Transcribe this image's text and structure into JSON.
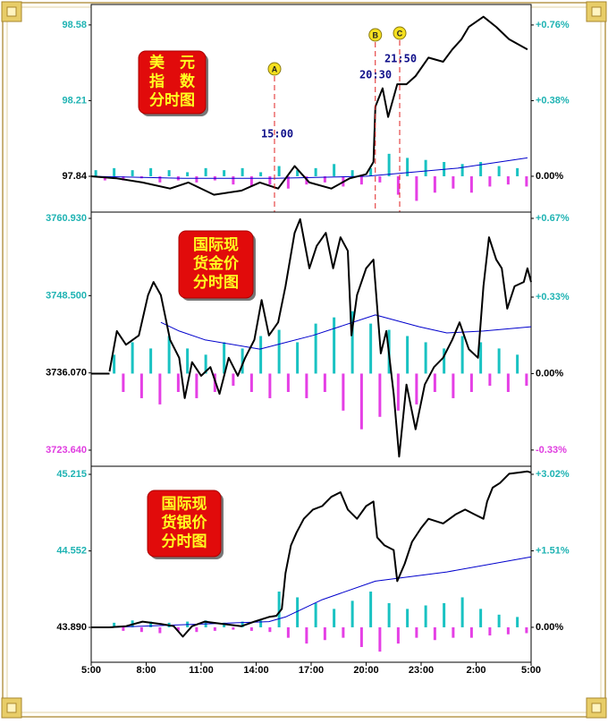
{
  "chart_data": [
    {
      "type": "line",
      "annotation": [
        "美　元",
        "指　数",
        "分时图"
      ],
      "xlim": [
        0,
        24
      ],
      "ylim": [
        97.665,
        98.68
      ],
      "yticks": [
        98.58,
        98.21,
        97.84
      ],
      "y2lim": [
        -0.18,
        0.863
      ],
      "y2ticks": [
        {
          "value": 0.76,
          "label": "+0.76%"
        },
        {
          "value": 0.38,
          "label": "+0.38%"
        },
        {
          "value": 0,
          "label": "0.00%"
        }
      ],
      "events": [
        {
          "marker": "A",
          "label": "15:00",
          "x": 10
        },
        {
          "marker": "B",
          "label": "20:30",
          "x": 15.5
        },
        {
          "marker": "C",
          "label": "21:50",
          "x": 16.83
        }
      ],
      "series": [
        {
          "type": "bar",
          "color": "#19c2c2",
          "color_down": "#e53fe5",
          "x": [
            0.25,
            0.75,
            1.25,
            1.75,
            2.25,
            2.75,
            3.25,
            3.75,
            4.25,
            4.75,
            5.25,
            5.75,
            6.25,
            6.75,
            7.25,
            7.75,
            8.25,
            8.75,
            9.25,
            9.75,
            10.25,
            10.75,
            11.25,
            11.75,
            12.25,
            12.75,
            13.25,
            13.75,
            14.25,
            14.75,
            15.25,
            15.75,
            16.25,
            16.75,
            17.25,
            17.75,
            18.25,
            18.75,
            19.25,
            19.75,
            20.25,
            20.75,
            21.25,
            21.75,
            22.25,
            22.75,
            23.25,
            23.75
          ],
          "values": [
            97.87,
            97.82,
            97.88,
            97.82,
            97.87,
            97.83,
            97.88,
            97.81,
            97.87,
            97.82,
            97.86,
            97.81,
            97.88,
            97.82,
            97.87,
            97.8,
            97.88,
            97.79,
            97.86,
            97.8,
            97.89,
            97.78,
            97.87,
            97.8,
            97.88,
            97.81,
            97.9,
            97.79,
            97.87,
            97.8,
            97.88,
            97.81,
            97.95,
            97.75,
            97.93,
            97.72,
            97.92,
            97.76,
            97.91,
            97.78,
            97.9,
            97.76,
            97.91,
            97.79,
            97.89,
            97.8,
            97.88,
            97.79
          ]
        },
        {
          "color": "#0000cc",
          "width": 1,
          "x": [
            0,
            5,
            10,
            15,
            20,
            23.8
          ],
          "values": [
            97.84,
            97.83,
            97.83,
            97.84,
            97.88,
            97.93
          ]
        },
        {
          "color": "#000000",
          "width": 2,
          "x": [
            0,
            1.4,
            2.8,
            4.3,
            5.3,
            6.7,
            8.2,
            9.2,
            10.2,
            11.1,
            11.9,
            13.1,
            14.1,
            15.0,
            15.4,
            15.5,
            15.9,
            16.2,
            16.7,
            17.2,
            17.7,
            18.4,
            19.2,
            19.7,
            20.2,
            20.6,
            21.4,
            22.1,
            22.8,
            23.8
          ],
          "values": [
            97.84,
            97.83,
            97.81,
            97.78,
            97.81,
            97.75,
            97.77,
            97.81,
            97.78,
            97.89,
            97.81,
            97.78,
            97.83,
            97.85,
            97.91,
            98.18,
            98.27,
            98.13,
            98.29,
            98.29,
            98.33,
            98.42,
            98.4,
            98.46,
            98.51,
            98.57,
            98.62,
            98.57,
            98.51,
            98.46
          ]
        }
      ]
    },
    {
      "type": "line",
      "annotation": [
        "国际现",
        "货金价",
        "分时图"
      ],
      "xlim": [
        0,
        24
      ],
      "ylim": [
        3721.05,
        3761.94
      ],
      "yticks": [
        {
          "value": 3760.93,
          "label": "3760.930"
        },
        {
          "value": 3748.5,
          "label": "3748.500"
        },
        {
          "value": 3736.07,
          "label": "3736.070"
        },
        {
          "value": 3723.64,
          "label": "3723.640"
        }
      ],
      "y2lim": [
        -0.4,
        0.697
      ],
      "y2ticks": [
        {
          "value": 0.67,
          "label": "+0.67%"
        },
        {
          "value": 0.33,
          "label": "+0.33%"
        },
        {
          "value": 0,
          "label": "0.00%"
        },
        {
          "value": -0.33,
          "label": "-0.33%"
        }
      ],
      "series": [
        {
          "type": "bar",
          "color": "#19c2c2",
          "color_down": "#e53fe5",
          "x": [
            1.25,
            1.75,
            2.25,
            2.75,
            3.25,
            3.75,
            4.25,
            4.75,
            5.25,
            5.75,
            6.25,
            6.75,
            7.25,
            7.75,
            8.25,
            8.75,
            9.25,
            9.75,
            10.25,
            10.75,
            11.25,
            11.75,
            12.25,
            12.75,
            13.25,
            13.75,
            14.25,
            14.75,
            15.25,
            15.75,
            16.25,
            16.75,
            17.25,
            17.75,
            18.25,
            18.75,
            19.25,
            19.75,
            20.25,
            20.75,
            21.25,
            21.75,
            22.25,
            22.75,
            23.25,
            23.75
          ],
          "values": [
            3739,
            3733,
            3741,
            3732,
            3740,
            3731,
            3742,
            3733,
            3740,
            3732,
            3739,
            3733,
            3741,
            3734,
            3740,
            3733,
            3742,
            3732,
            3743,
            3733,
            3741,
            3732,
            3744,
            3733,
            3745,
            3730,
            3746,
            3727,
            3744,
            3729,
            3743,
            3730,
            3742,
            3731,
            3741,
            3733,
            3740,
            3732,
            3742,
            3733,
            3741,
            3734,
            3740,
            3733,
            3739,
            3734
          ]
        },
        {
          "color": "#0000cc",
          "width": 1,
          "x": [
            3.8,
            4.8,
            6.2,
            9.2,
            12.1,
            15.5,
            17.9,
            19.4,
            21.4,
            24.0
          ],
          "values": [
            3744.2,
            3742.8,
            3741.4,
            3739.9,
            3742.1,
            3745.4,
            3743.5,
            3742.5,
            3742.8,
            3743.5
          ]
        },
        {
          "color": "#000000",
          "width": 2,
          "x": [
            1.0,
            1.4,
            1.9,
            2.6,
            3.1,
            3.4,
            3.8,
            4.3,
            4.8,
            5.1,
            5.5,
            6.0,
            6.5,
            7.0,
            7.5,
            8.0,
            8.4,
            8.9,
            9.3,
            9.7,
            10.2,
            10.6,
            11.1,
            11.4,
            11.9,
            12.3,
            12.8,
            13.2,
            13.6,
            14.0,
            14.2,
            14.5,
            15.0,
            15.4,
            15.8,
            16.1,
            16.5,
            16.8,
            17.2,
            17.7,
            18.2,
            18.7,
            19.2,
            19.7,
            20.1,
            20.6,
            21.1,
            21.4,
            21.7,
            22.1,
            22.4,
            22.7,
            23.1,
            23.6,
            23.8,
            24.0
          ],
          "values": [
            3736.3,
            3742.8,
            3740.6,
            3742.1,
            3748.6,
            3750.7,
            3748.6,
            3741.4,
            3738.5,
            3732.0,
            3737.8,
            3735.6,
            3737.0,
            3732.7,
            3738.5,
            3735.6,
            3738.5,
            3741.4,
            3747.8,
            3742.1,
            3744.2,
            3750.0,
            3758.6,
            3760.8,
            3752.9,
            3756.5,
            3758.6,
            3752.9,
            3757.9,
            3755.7,
            3742.1,
            3748.6,
            3752.9,
            3754.3,
            3739.2,
            3742.8,
            3732.7,
            3722.6,
            3734.2,
            3727.0,
            3734.2,
            3737.0,
            3738.5,
            3741.4,
            3744.2,
            3739.9,
            3738.5,
            3750.0,
            3757.9,
            3754.3,
            3752.9,
            3746.4,
            3750.0,
            3750.7,
            3752.9,
            3750.7
          ]
        }
      ]
    },
    {
      "type": "line",
      "annotation": [
        "国际现",
        "货银价",
        "分时图"
      ],
      "xlim": [
        0,
        24
      ],
      "ylim": [
        43.588,
        45.285
      ],
      "yticks": [
        45.215,
        44.552,
        {
          "value": 43.89,
          "label": "43.890"
        }
      ],
      "y2lim": [
        -0.69,
        3.179
      ],
      "y2ticks": [
        {
          "value": 3.02,
          "label": "+3.02%"
        },
        {
          "value": 1.51,
          "label": "+1.51%"
        },
        {
          "value": 0,
          "label": "0.00%"
        }
      ],
      "xticks": [
        {
          "value": 0,
          "label": "5:00"
        },
        {
          "value": 3,
          "label": "8:00"
        },
        {
          "value": 6,
          "label": "11:00"
        },
        {
          "value": 9,
          "label": "14:00"
        },
        {
          "value": 12,
          "label": "17:00"
        },
        {
          "value": 15,
          "label": "20:00"
        },
        {
          "value": 18,
          "label": "23:00"
        },
        {
          "value": 21,
          "label": "2:00"
        },
        {
          "value": 24,
          "label": "5:00"
        }
      ],
      "series": [
        {
          "type": "bar",
          "color": "#19c2c2",
          "color_down": "#e53fe5",
          "x": [
            1.25,
            1.75,
            2.25,
            2.75,
            3.25,
            3.75,
            4.25,
            4.75,
            5.25,
            5.75,
            6.25,
            6.75,
            7.25,
            7.75,
            8.25,
            8.75,
            9.25,
            9.75,
            10.25,
            10.75,
            11.25,
            11.75,
            12.25,
            12.75,
            13.25,
            13.75,
            14.25,
            14.75,
            15.25,
            15.75,
            16.25,
            16.75,
            17.25,
            17.75,
            18.25,
            18.75,
            19.25,
            19.75,
            20.25,
            20.75,
            21.25,
            21.75,
            22.25,
            22.75,
            23.25,
            23.75
          ],
          "values": [
            43.93,
            43.86,
            43.95,
            43.85,
            43.94,
            43.84,
            43.93,
            43.86,
            43.94,
            43.85,
            43.95,
            43.86,
            43.93,
            43.87,
            43.94,
            43.86,
            43.95,
            43.85,
            44.2,
            43.8,
            44.15,
            43.75,
            44.1,
            43.78,
            44.05,
            43.8,
            44.12,
            43.72,
            44.2,
            43.68,
            44.1,
            43.75,
            44.05,
            43.8,
            44.08,
            43.78,
            44.1,
            43.8,
            44.15,
            43.8,
            44.05,
            43.82,
            44.0,
            43.83,
            43.98,
            43.84
          ]
        },
        {
          "color": "#0000cc",
          "width": 1,
          "x": [
            1.0,
            9.7,
            10.6,
            12.6,
            15.5,
            19.4,
            24.0
          ],
          "values": [
            43.89,
            43.94,
            43.98,
            44.13,
            44.29,
            44.37,
            44.5
          ]
        },
        {
          "color": "#000000",
          "width": 2,
          "x": [
            1.0,
            1.9,
            2.8,
            3.8,
            4.5,
            5.0,
            5.5,
            6.2,
            7.2,
            8.2,
            8.9,
            9.7,
            10.1,
            10.4,
            10.6,
            10.9,
            11.2,
            11.6,
            12.1,
            12.6,
            13.1,
            13.6,
            14.0,
            14.5,
            15.0,
            15.4,
            15.6,
            16.0,
            16.5,
            16.7,
            17.1,
            17.5,
            18.0,
            18.4,
            19.2,
            19.9,
            20.4,
            20.9,
            21.4,
            21.6,
            21.9,
            22.3,
            22.8,
            23.3,
            23.8,
            24.0
          ],
          "values": [
            43.89,
            43.9,
            43.94,
            43.92,
            43.9,
            43.81,
            43.9,
            43.94,
            43.92,
            43.9,
            43.94,
            43.98,
            43.99,
            44.05,
            44.36,
            44.6,
            44.71,
            44.83,
            44.91,
            44.94,
            45.02,
            45.06,
            44.91,
            44.83,
            44.94,
            44.98,
            44.67,
            44.6,
            44.56,
            44.29,
            44.44,
            44.63,
            44.75,
            44.83,
            44.79,
            44.87,
            44.91,
            44.87,
            44.83,
            44.98,
            45.1,
            45.14,
            45.22,
            45.23,
            45.24,
            45.23
          ]
        }
      ]
    }
  ]
}
